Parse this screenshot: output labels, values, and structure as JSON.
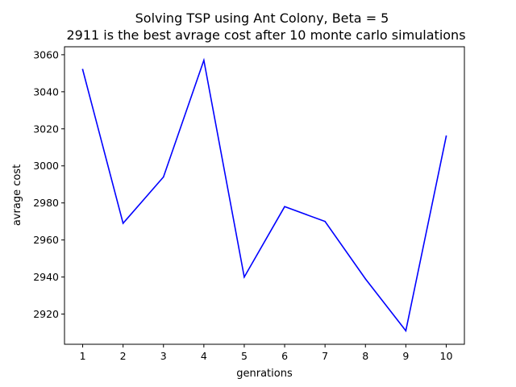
{
  "chart_data": {
    "type": "line",
    "title": "Solving TSP using Ant Colony, Beta = 5",
    "subtitle": "2911 is the best avrage cost after 10 monte carlo simulations",
    "xlabel": "genrations",
    "ylabel": "avrage cost",
    "x": [
      1,
      2,
      3,
      4,
      5,
      6,
      7,
      8,
      9,
      10
    ],
    "series": [
      {
        "values": [
          3052,
          2969,
          2994,
          3057,
          2940,
          2978,
          2970,
          2939,
          2911,
          3016
        ],
        "color": "#0000ff"
      }
    ],
    "x_ticks": [
      1,
      2,
      3,
      4,
      5,
      6,
      7,
      8,
      9,
      10
    ],
    "y_ticks": [
      2920,
      2940,
      2960,
      2980,
      3000,
      3020,
      3040,
      3060
    ],
    "xlim": [
      0.55,
      10.45
    ],
    "ylim": [
      2903.7,
      3064.3
    ],
    "grid": false,
    "legend": "none"
  }
}
